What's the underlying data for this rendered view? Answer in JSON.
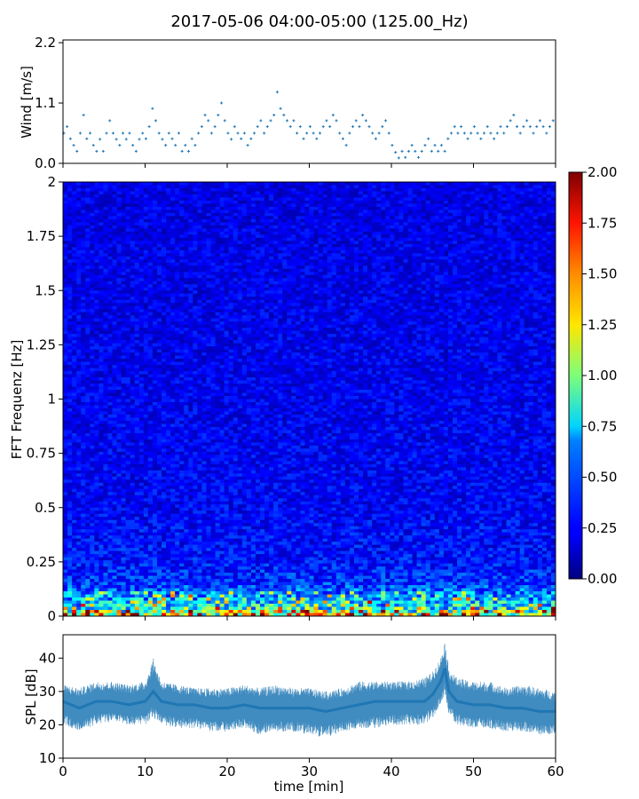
{
  "title": "2017-05-06 04:00-05:00 (125.00_Hz)",
  "chart_data": [
    {
      "panel": "wind",
      "type": "scatter",
      "ylabel": "Wind [m/s]",
      "xlabel": "",
      "xlim": [
        0,
        60
      ],
      "ylim": [
        0,
        2.25
      ],
      "yticks": [
        0.0,
        1.1,
        2.2
      ],
      "ytick_labels": [
        "0.0",
        "1.1",
        "2.2"
      ],
      "marker_color": "#1f77b4",
      "points": [
        [
          0.1,
          0.55
        ],
        [
          0.5,
          0.67
        ],
        [
          0.9,
          0.45
        ],
        [
          1.3,
          0.33
        ],
        [
          1.7,
          0.22
        ],
        [
          2.1,
          0.55
        ],
        [
          2.5,
          0.88
        ],
        [
          2.9,
          0.45
        ],
        [
          3.3,
          0.55
        ],
        [
          3.7,
          0.33
        ],
        [
          4.1,
          0.22
        ],
        [
          4.5,
          0.44
        ],
        [
          4.9,
          0.22
        ],
        [
          5.3,
          0.55
        ],
        [
          5.7,
          0.78
        ],
        [
          6.1,
          0.55
        ],
        [
          6.5,
          0.44
        ],
        [
          6.9,
          0.33
        ],
        [
          7.3,
          0.55
        ],
        [
          7.7,
          0.44
        ],
        [
          8.1,
          0.55
        ],
        [
          8.5,
          0.33
        ],
        [
          8.9,
          0.22
        ],
        [
          9.3,
          0.44
        ],
        [
          9.7,
          0.55
        ],
        [
          10.1,
          0.45
        ],
        [
          10.5,
          0.67
        ],
        [
          10.9,
          1.0
        ],
        [
          11.3,
          0.78
        ],
        [
          11.7,
          0.55
        ],
        [
          12.1,
          0.44
        ],
        [
          12.5,
          0.33
        ],
        [
          12.9,
          0.55
        ],
        [
          13.3,
          0.45
        ],
        [
          13.7,
          0.33
        ],
        [
          14.1,
          0.55
        ],
        [
          14.5,
          0.22
        ],
        [
          14.9,
          0.33
        ],
        [
          15.3,
          0.22
        ],
        [
          15.7,
          0.45
        ],
        [
          16.1,
          0.33
        ],
        [
          16.5,
          0.55
        ],
        [
          16.9,
          0.67
        ],
        [
          17.3,
          0.88
        ],
        [
          17.7,
          0.78
        ],
        [
          18.1,
          0.55
        ],
        [
          18.5,
          0.67
        ],
        [
          18.9,
          0.88
        ],
        [
          19.3,
          1.1
        ],
        [
          19.7,
          0.78
        ],
        [
          20.1,
          0.55
        ],
        [
          20.5,
          0.44
        ],
        [
          20.9,
          0.67
        ],
        [
          21.3,
          0.55
        ],
        [
          21.7,
          0.45
        ],
        [
          22.1,
          0.55
        ],
        [
          22.5,
          0.33
        ],
        [
          22.9,
          0.45
        ],
        [
          23.3,
          0.55
        ],
        [
          23.7,
          0.67
        ],
        [
          24.1,
          0.78
        ],
        [
          24.5,
          0.55
        ],
        [
          24.9,
          0.67
        ],
        [
          25.3,
          0.78
        ],
        [
          25.7,
          0.88
        ],
        [
          26.1,
          1.3
        ],
        [
          26.5,
          1.0
        ],
        [
          26.9,
          0.88
        ],
        [
          27.3,
          0.78
        ],
        [
          27.7,
          0.67
        ],
        [
          28.1,
          0.78
        ],
        [
          28.5,
          0.55
        ],
        [
          28.9,
          0.67
        ],
        [
          29.3,
          0.45
        ],
        [
          29.7,
          0.55
        ],
        [
          30.1,
          0.67
        ],
        [
          30.5,
          0.55
        ],
        [
          30.9,
          0.45
        ],
        [
          31.3,
          0.55
        ],
        [
          31.7,
          0.67
        ],
        [
          32.1,
          0.78
        ],
        [
          32.5,
          0.67
        ],
        [
          32.9,
          0.88
        ],
        [
          33.3,
          0.78
        ],
        [
          33.7,
          0.55
        ],
        [
          34.1,
          0.45
        ],
        [
          34.5,
          0.33
        ],
        [
          34.9,
          0.55
        ],
        [
          35.3,
          0.67
        ],
        [
          35.7,
          0.78
        ],
        [
          36.1,
          0.67
        ],
        [
          36.5,
          0.88
        ],
        [
          36.9,
          0.78
        ],
        [
          37.3,
          0.67
        ],
        [
          37.7,
          0.55
        ],
        [
          38.1,
          0.45
        ],
        [
          38.5,
          0.55
        ],
        [
          38.9,
          0.67
        ],
        [
          39.3,
          0.78
        ],
        [
          39.7,
          0.55
        ],
        [
          40.1,
          0.33
        ],
        [
          40.5,
          0.2
        ],
        [
          40.9,
          0.1
        ],
        [
          41.3,
          0.22
        ],
        [
          41.7,
          0.11
        ],
        [
          42.1,
          0.22
        ],
        [
          42.5,
          0.33
        ],
        [
          42.9,
          0.22
        ],
        [
          43.3,
          0.11
        ],
        [
          43.7,
          0.22
        ],
        [
          44.1,
          0.33
        ],
        [
          44.5,
          0.45
        ],
        [
          44.9,
          0.22
        ],
        [
          45.3,
          0.33
        ],
        [
          45.7,
          0.22
        ],
        [
          46.1,
          0.33
        ],
        [
          46.5,
          0.22
        ],
        [
          46.9,
          0.45
        ],
        [
          47.3,
          0.55
        ],
        [
          47.7,
          0.67
        ],
        [
          48.1,
          0.55
        ],
        [
          48.5,
          0.67
        ],
        [
          48.9,
          0.55
        ],
        [
          49.3,
          0.45
        ],
        [
          49.7,
          0.55
        ],
        [
          50.1,
          0.67
        ],
        [
          50.5,
          0.55
        ],
        [
          50.9,
          0.45
        ],
        [
          51.3,
          0.55
        ],
        [
          51.7,
          0.67
        ],
        [
          52.1,
          0.55
        ],
        [
          52.5,
          0.45
        ],
        [
          52.9,
          0.55
        ],
        [
          53.3,
          0.67
        ],
        [
          53.7,
          0.55
        ],
        [
          54.1,
          0.67
        ],
        [
          54.5,
          0.78
        ],
        [
          54.9,
          0.88
        ],
        [
          55.3,
          0.67
        ],
        [
          55.7,
          0.55
        ],
        [
          56.1,
          0.67
        ],
        [
          56.5,
          0.78
        ],
        [
          56.9,
          0.67
        ],
        [
          57.3,
          0.55
        ],
        [
          57.7,
          0.67
        ],
        [
          58.1,
          0.78
        ],
        [
          58.5,
          0.67
        ],
        [
          58.9,
          0.55
        ],
        [
          59.3,
          0.67
        ],
        [
          59.7,
          0.78
        ]
      ]
    },
    {
      "panel": "spectrogram",
      "type": "heatmap",
      "ylabel": "FFT Frequenz [Hz]",
      "xlabel": "",
      "xlim": [
        0,
        60
      ],
      "ylim": [
        0,
        2
      ],
      "yticks": [
        0,
        0.25,
        0.5,
        0.75,
        1,
        1.25,
        1.5,
        1.75,
        2
      ],
      "ytick_labels": [
        "0",
        "0.25",
        "0.5",
        "0.75",
        "1",
        "1.25",
        "1.5",
        "1.75",
        "2"
      ],
      "colormap": "jet",
      "colorbar": {
        "range": [
          0.0,
          2.0
        ],
        "ticks": [
          0.0,
          0.25,
          0.5,
          0.75,
          1.0,
          1.25,
          1.5,
          1.75,
          2.0
        ],
        "tick_labels": [
          "0.00",
          "0.25",
          "0.50",
          "0.75",
          "1.00",
          "1.25",
          "1.50",
          "1.75",
          "2.00"
        ]
      },
      "mean_level_by_frequency": {
        "freq": [
          0.0,
          0.02,
          0.05,
          0.1,
          0.15,
          0.25,
          0.5,
          1.0,
          1.5,
          2.0
        ],
        "value": [
          1.3,
          0.95,
          0.7,
          0.5,
          0.35,
          0.28,
          0.24,
          0.22,
          0.21,
          0.2
        ]
      }
    },
    {
      "panel": "spl",
      "type": "line",
      "ylabel": "SPL [dB]",
      "xlabel": "time [min]",
      "xlim": [
        0,
        60
      ],
      "ylim": [
        10,
        47
      ],
      "yticks": [
        10,
        20,
        30,
        40
      ],
      "ytick_labels": [
        "10",
        "20",
        "30",
        "40"
      ],
      "xticks": [
        0,
        10,
        20,
        30,
        40,
        50,
        60
      ],
      "xtick_labels": [
        "0",
        "10",
        "20",
        "30",
        "40",
        "50",
        "60"
      ],
      "line_color": "#1f77b4",
      "x": [
        0,
        2,
        4,
        6,
        8,
        10,
        11,
        12,
        14,
        16,
        18,
        20,
        22,
        24,
        26,
        28,
        30,
        32,
        34,
        36,
        38,
        40,
        42,
        44,
        45,
        46,
        46.5,
        47,
        48,
        50,
        52,
        54,
        56,
        58,
        60
      ],
      "mean": [
        27,
        25,
        27,
        27,
        26,
        27,
        30,
        27,
        26,
        26,
        25,
        25,
        26,
        25,
        25,
        25,
        25,
        24,
        25,
        26,
        27,
        27,
        27,
        27,
        29,
        33,
        37,
        30,
        27,
        26,
        26,
        25,
        25,
        24,
        24
      ],
      "upper": [
        32,
        31,
        33,
        33,
        32,
        33,
        40,
        33,
        32,
        31,
        31,
        31,
        32,
        31,
        32,
        31,
        31,
        30,
        31,
        33,
        33,
        33,
        33,
        34,
        36,
        40,
        45,
        37,
        34,
        33,
        33,
        31,
        32,
        31,
        30
      ],
      "lower": [
        20,
        18,
        20,
        21,
        20,
        20,
        22,
        20,
        19,
        19,
        18,
        18,
        19,
        17,
        18,
        18,
        17,
        16,
        18,
        19,
        19,
        20,
        20,
        20,
        22,
        26,
        29,
        23,
        20,
        19,
        19,
        18,
        18,
        17,
        17
      ]
    }
  ]
}
